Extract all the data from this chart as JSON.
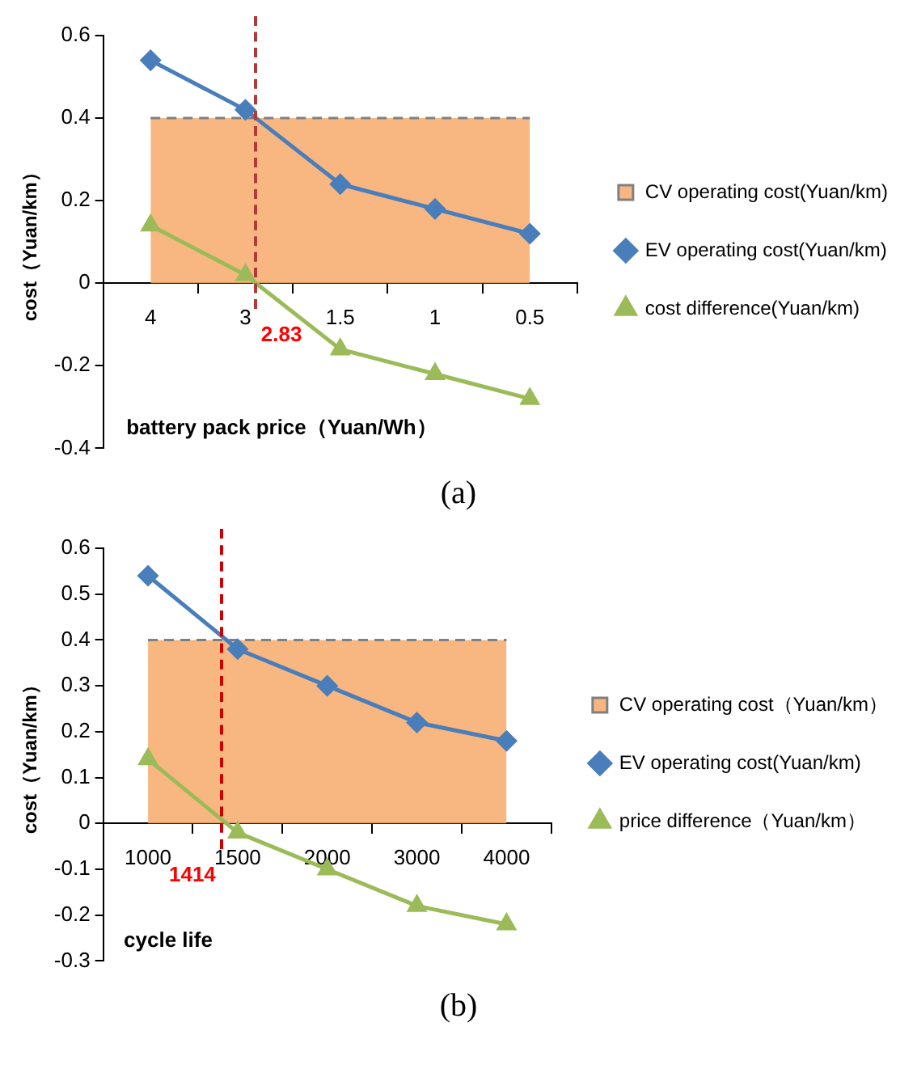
{
  "chart_data": [
    {
      "type": "line",
      "title": "(a)",
      "xlabel": "battery pack price（Yuan/Wh）",
      "ylabel": "cost（Yuan/km）",
      "categories": [
        "4",
        "3",
        "1.5",
        "1",
        "0.5"
      ],
      "ylim": [
        -0.4,
        0.6
      ],
      "yticks": [
        -0.4,
        -0.2,
        0,
        0.2,
        0.4,
        0.6
      ],
      "grid": false,
      "legend": "right",
      "series": [
        {
          "name": "CV operating cost(Yuan/km)",
          "type": "area",
          "color": "#f7ac6e",
          "line_style": "dashed",
          "marker": "none",
          "values": [
            0.4,
            0.4,
            0.4,
            0.4,
            0.4
          ]
        },
        {
          "name": "EV operating cost(Yuan/km)",
          "type": "line",
          "color": "#4a7ebb",
          "marker": "diamond",
          "values": [
            0.54,
            0.42,
            0.24,
            0.18,
            0.12
          ]
        },
        {
          "name": "cost difference(Yuan/km)",
          "type": "line",
          "color": "#9bbb59",
          "marker": "triangle",
          "values": [
            0.14,
            0.02,
            -0.16,
            -0.22,
            -0.28
          ]
        }
      ],
      "annotations": [
        "2.83"
      ]
    },
    {
      "type": "line",
      "title": "(b)",
      "xlabel": "cycle life",
      "ylabel": "cost（Yuan/km）",
      "categories": [
        "1000",
        "1500",
        "2000",
        "3000",
        "4000"
      ],
      "ylim": [
        -0.3,
        0.6
      ],
      "yticks": [
        -0.3,
        -0.2,
        -0.1,
        0,
        0.1,
        0.2,
        0.3,
        0.4,
        0.5,
        0.6
      ],
      "grid": false,
      "legend": "right",
      "series": [
        {
          "name": "CV operating cost（Yuan/km）",
          "type": "area",
          "color": "#f7ac6e",
          "line_style": "dashed",
          "marker": "none",
          "values": [
            0.4,
            0.4,
            0.4,
            0.4,
            0.4
          ]
        },
        {
          "name": "EV operating cost(Yuan/km)",
          "type": "line",
          "color": "#4a7ebb",
          "marker": "diamond",
          "values": [
            0.54,
            0.38,
            0.3,
            0.22,
            0.18
          ]
        },
        {
          "name": "price difference（Yuan/km）",
          "type": "line",
          "color": "#9bbb59",
          "marker": "triangle",
          "values": [
            0.14,
            -0.02,
            -0.1,
            -0.18,
            -0.22
          ]
        }
      ],
      "annotations": [
        "1414"
      ]
    }
  ]
}
